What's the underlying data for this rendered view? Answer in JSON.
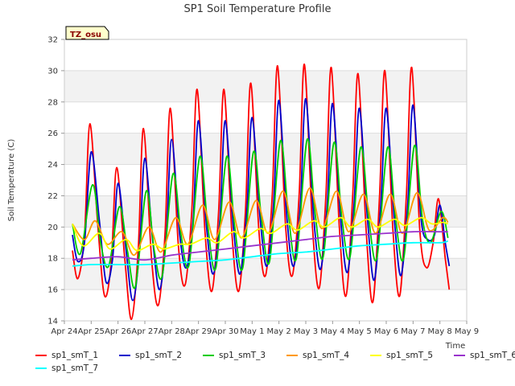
{
  "chart_data": {
    "type": "line",
    "title": "SP1 Soil Temperature Profile",
    "xlabel": "Time",
    "ylabel": "Soil Temperature (C)",
    "ylim": [
      14,
      32
    ],
    "xlim": [
      0,
      15
    ],
    "yticks": [
      14,
      16,
      18,
      20,
      22,
      24,
      26,
      28,
      30,
      32
    ],
    "xtick_labels": [
      "Apr 24",
      "Apr 25",
      "Apr 26",
      "Apr 27",
      "Apr 28",
      "Apr 29",
      "Apr 30",
      "May 1",
      "May 2",
      "May 3",
      "May 4",
      "May 5",
      "May 6",
      "May 7",
      "May 8",
      "May 9"
    ],
    "badge": "TZ_osu",
    "grid": true,
    "series": [
      {
        "name": "sp1_smT_1",
        "color": "#ff0000",
        "x": [
          0.3,
          0.5,
          0.75,
          0.95,
          1.25,
          1.5,
          1.75,
          1.95,
          2.25,
          2.5,
          2.75,
          2.95,
          3.25,
          3.5,
          3.75,
          3.95,
          4.25,
          4.5,
          4.75,
          4.95,
          5.25,
          5.5,
          5.75,
          5.95,
          6.25,
          6.5,
          6.75,
          6.95,
          7.25,
          7.5,
          7.75,
          7.95,
          8.25,
          8.5,
          8.75,
          8.95,
          9.25,
          9.5,
          9.75,
          9.95,
          10.25,
          10.5,
          10.75,
          10.95,
          11.25,
          11.5,
          11.75,
          11.95,
          12.25,
          12.5,
          12.75,
          12.95,
          13.25,
          13.5,
          13.75,
          13.95,
          14.2,
          14.35
        ],
        "y": [
          18.5,
          16.7,
          19.5,
          26.6,
          20.0,
          15.6,
          17.8,
          23.8,
          18.0,
          14.1,
          18.5,
          26.3,
          18.0,
          15.0,
          19.5,
          27.6,
          18.8,
          16.3,
          21.0,
          28.8,
          19.5,
          15.9,
          21.0,
          28.8,
          19.5,
          15.9,
          21.0,
          29.2,
          19.8,
          16.9,
          22.0,
          30.3,
          20.0,
          16.9,
          22.0,
          30.4,
          20.0,
          16.1,
          22.0,
          30.2,
          20.0,
          15.6,
          22.0,
          29.8,
          19.8,
          15.2,
          22.0,
          30.0,
          19.8,
          15.6,
          22.0,
          30.2,
          19.8,
          17.4,
          19.0,
          21.8,
          18.0,
          16.0
        ]
      },
      {
        "name": "sp1_smT_2",
        "color": "#0000cc",
        "x": [
          0.3,
          0.5,
          0.75,
          1.0,
          1.3,
          1.55,
          1.8,
          2.0,
          2.3,
          2.55,
          2.8,
          3.0,
          3.3,
          3.55,
          3.8,
          4.0,
          4.3,
          4.55,
          4.8,
          5.0,
          5.3,
          5.55,
          5.8,
          6.0,
          6.3,
          6.55,
          6.8,
          7.0,
          7.3,
          7.55,
          7.8,
          8.0,
          8.3,
          8.55,
          8.8,
          9.0,
          9.3,
          9.55,
          9.8,
          10.0,
          10.3,
          10.55,
          10.8,
          11.0,
          11.3,
          11.55,
          11.8,
          12.0,
          12.3,
          12.55,
          12.8,
          13.0,
          13.3,
          13.55,
          13.8,
          14.0,
          14.2,
          14.35
        ],
        "y": [
          19.5,
          17.8,
          19.0,
          24.8,
          20.5,
          16.5,
          18.0,
          22.8,
          18.5,
          15.3,
          18.5,
          24.4,
          19.0,
          16.0,
          19.5,
          25.6,
          19.5,
          17.4,
          20.5,
          26.8,
          20.0,
          17.0,
          20.5,
          26.8,
          20.0,
          17.0,
          21.0,
          27.0,
          20.5,
          17.5,
          21.5,
          28.1,
          20.5,
          17.5,
          21.5,
          28.2,
          20.5,
          17.3,
          21.5,
          27.9,
          20.5,
          17.1,
          21.5,
          27.6,
          20.5,
          16.6,
          21.5,
          27.6,
          20.5,
          16.9,
          21.5,
          27.8,
          20.5,
          19.2,
          19.5,
          21.4,
          19.0,
          17.5
        ]
      },
      {
        "name": "sp1_smT_3",
        "color": "#00cc00",
        "x": [
          0.3,
          0.6,
          1.05,
          1.35,
          1.65,
          2.05,
          2.35,
          2.65,
          3.05,
          3.35,
          3.65,
          4.05,
          4.35,
          4.65,
          5.05,
          5.35,
          5.65,
          6.05,
          6.35,
          6.65,
          7.05,
          7.35,
          7.65,
          8.05,
          8.35,
          8.65,
          9.05,
          9.35,
          9.65,
          10.05,
          10.35,
          10.65,
          11.05,
          11.35,
          11.65,
          12.05,
          12.35,
          12.65,
          13.05,
          13.35,
          13.65,
          14.05,
          14.3
        ],
        "y": [
          20.2,
          18.3,
          22.7,
          19.0,
          17.5,
          21.3,
          18.5,
          16.2,
          22.3,
          18.5,
          16.9,
          23.4,
          19.5,
          17.6,
          24.5,
          20.0,
          17.4,
          24.5,
          20.0,
          17.4,
          24.8,
          20.5,
          17.8,
          25.5,
          20.8,
          18.0,
          25.6,
          20.8,
          18.1,
          25.4,
          20.5,
          18.1,
          25.1,
          20.5,
          18.0,
          25.1,
          20.5,
          18.0,
          25.2,
          20.5,
          19.0,
          21.0,
          19.3
        ]
      },
      {
        "name": "sp1_smT_4",
        "color": "#ff9900",
        "x": [
          0.3,
          0.75,
          1.15,
          1.6,
          2.15,
          2.6,
          3.15,
          3.6,
          4.15,
          4.6,
          5.15,
          5.6,
          6.15,
          6.6,
          7.15,
          7.6,
          8.15,
          8.6,
          9.15,
          9.6,
          10.15,
          10.6,
          11.15,
          11.6,
          12.15,
          12.6,
          13.15,
          13.6,
          14.1,
          14.3
        ],
        "y": [
          20.2,
          19.2,
          20.4,
          18.9,
          19.7,
          18.2,
          20.0,
          18.4,
          20.6,
          18.9,
          21.4,
          19.2,
          21.6,
          19.3,
          21.7,
          19.6,
          22.3,
          19.6,
          22.5,
          19.9,
          22.3,
          19.7,
          22.1,
          19.6,
          22.1,
          19.6,
          22.2,
          19.8,
          20.6,
          20.3
        ]
      },
      {
        "name": "sp1_smT_5",
        "color": "#ffff00",
        "x": [
          0.3,
          0.7,
          1.3,
          1.7,
          2.3,
          2.7,
          3.3,
          3.7,
          4.3,
          4.7,
          5.3,
          5.7,
          6.3,
          6.7,
          7.3,
          7.7,
          8.3,
          8.7,
          9.3,
          9.7,
          10.3,
          10.7,
          11.3,
          11.7,
          12.3,
          12.7,
          13.3,
          13.7,
          14.1,
          14.3
        ],
        "y": [
          20.2,
          18.8,
          19.6,
          18.6,
          19.2,
          18.5,
          18.9,
          18.6,
          18.9,
          18.9,
          19.3,
          19.0,
          19.7,
          19.3,
          19.9,
          19.6,
          20.2,
          19.8,
          20.4,
          20.0,
          20.6,
          20.0,
          20.5,
          20.0,
          20.5,
          20.1,
          20.6,
          20.2,
          20.3,
          20.2
        ]
      },
      {
        "name": "sp1_smT_6",
        "color": "#9933cc",
        "x": [
          0.3,
          1.0,
          2.0,
          3.0,
          4.0,
          5.0,
          6.0,
          7.0,
          8.0,
          9.0,
          10.0,
          11.0,
          12.0,
          13.0,
          14.0,
          14.3
        ],
        "y": [
          17.9,
          18.0,
          18.1,
          17.9,
          18.2,
          18.4,
          18.6,
          18.8,
          19.0,
          19.2,
          19.4,
          19.5,
          19.6,
          19.7,
          19.7,
          19.7
        ]
      },
      {
        "name": "sp1_smT_7",
        "color": "#00ffff",
        "x": [
          0.3,
          1.0,
          2.0,
          3.0,
          4.0,
          5.0,
          6.0,
          7.0,
          8.0,
          9.0,
          10.0,
          11.0,
          12.0,
          13.0,
          14.0,
          14.3
        ],
        "y": [
          17.5,
          17.6,
          17.6,
          17.6,
          17.7,
          17.8,
          17.9,
          18.1,
          18.3,
          18.4,
          18.6,
          18.8,
          18.9,
          19.0,
          19.0,
          19.1
        ]
      }
    ]
  }
}
